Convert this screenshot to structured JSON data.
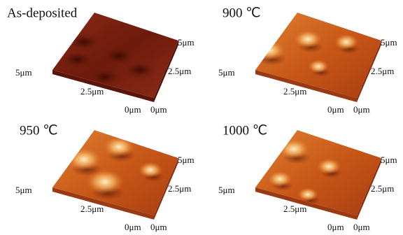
{
  "panels": [
    {
      "title": "As-deposited",
      "labels": [
        "5μm",
        "2.5μm",
        "0μm",
        "0μm",
        "2.5μm",
        "5μm"
      ]
    },
    {
      "title": "900 ℃",
      "labels": [
        "5μm",
        "2.5μm",
        "0μm",
        "0μm",
        "2.5μm",
        "5μm"
      ]
    },
    {
      "title": "950 ℃",
      "labels": [
        "5μm",
        "2.5μm",
        "0μm",
        "0μm",
        "2.5μm",
        "5μm"
      ]
    },
    {
      "title": "1000 ℃",
      "labels": [
        "5μm",
        "2.5μm",
        "0μm",
        "0μm",
        "2.5μm",
        "5μm"
      ]
    }
  ]
}
